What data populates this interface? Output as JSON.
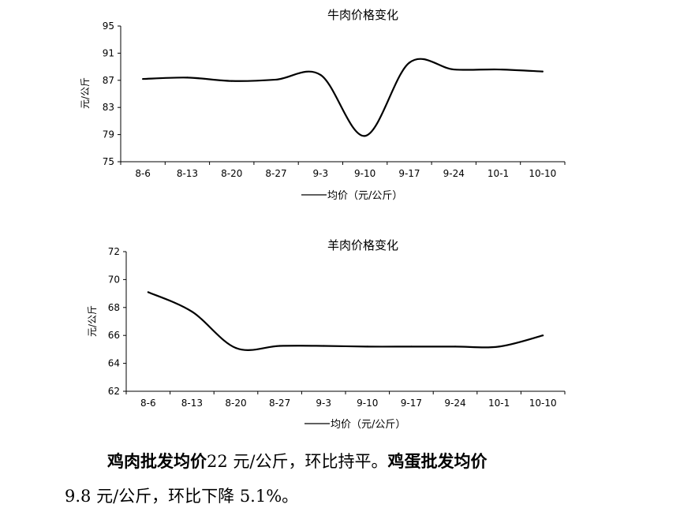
{
  "charts_text": {
    "beef": {
      "title": "牛肉价格变化",
      "ylabel": "元/公斤",
      "legend": "均价（元/公斤）"
    },
    "lamb": {
      "title": "羊肉价格变化",
      "ylabel": "元/公斤",
      "legend": "均价（元/公斤）"
    }
  },
  "chart_data": [
    {
      "type": "line",
      "title": "牛肉价格变化",
      "xlabel": "",
      "ylabel": "元/公斤",
      "categories": [
        "8-6",
        "8-13",
        "8-20",
        "8-27",
        "9-3",
        "9-10",
        "9-17",
        "9-24",
        "10-1",
        "10-10"
      ],
      "series": [
        {
          "name": "均价（元/公斤）",
          "values": [
            87.2,
            87.4,
            86.9,
            87.1,
            87.8,
            78.8,
            89.6,
            88.6,
            88.6,
            88.3
          ]
        }
      ],
      "ylim": [
        75,
        95
      ],
      "yticks": [
        75,
        79,
        83,
        87,
        91,
        95
      ],
      "grid": false,
      "legend": "bottom",
      "color": "#000000"
    },
    {
      "type": "line",
      "title": "羊肉价格变化",
      "xlabel": "",
      "ylabel": "元/公斤",
      "categories": [
        "8-6",
        "8-13",
        "8-20",
        "8-27",
        "9-3",
        "9-10",
        "9-17",
        "9-24",
        "10-1",
        "10-10"
      ],
      "series": [
        {
          "name": "均价（元/公斤）",
          "values": [
            69.1,
            67.7,
            65.1,
            65.25,
            65.25,
            65.2,
            65.2,
            65.2,
            65.2,
            66.0
          ]
        }
      ],
      "ylim": [
        62,
        72
      ],
      "yticks": [
        62,
        64,
        66,
        68,
        70,
        72
      ],
      "grid": false,
      "legend": "bottom",
      "color": "#000000"
    }
  ],
  "text": {
    "p1_bold1": "鸡肉批发均价",
    "p1_text1": "22 元/公斤，环比持平。",
    "p1_bold2": "鸡蛋批发均价",
    "p2_text": "9.8 元/公斤，环比下降 5.1%。"
  }
}
